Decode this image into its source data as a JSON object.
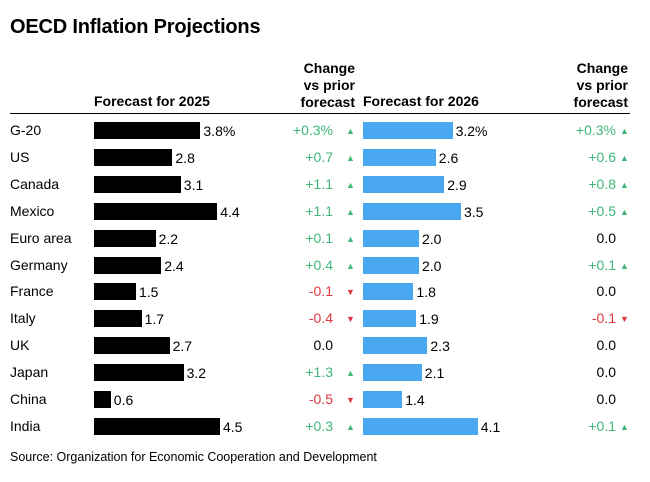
{
  "title": "OECD Inflation Projections",
  "headers": {
    "forecast_2025": "Forecast for 2025",
    "change_2025": [
      "Change",
      "vs prior",
      "forecast"
    ],
    "forecast_2026": "Forecast for 2026",
    "change_2026": [
      "Change",
      "vs prior",
      "forecast"
    ]
  },
  "source": "Source: Organization for Economic Cooperation and Development",
  "colors": {
    "bar_2025": "#000000",
    "bar_2026": "#4aa8f0",
    "up": "#3fb87a",
    "down": "#e0363f"
  },
  "chart_data": {
    "type": "bar",
    "categories": [
      "G-20",
      "US",
      "Canada",
      "Mexico",
      "Euro area",
      "Germany",
      "France",
      "Italy",
      "UK",
      "Japan",
      "China",
      "India"
    ],
    "series": [
      {
        "name": "Forecast for 2025",
        "values": [
          3.8,
          2.8,
          3.1,
          4.4,
          2.2,
          2.4,
          1.5,
          1.7,
          2.7,
          3.2,
          0.6,
          4.5
        ],
        "labels": [
          "3.8%",
          "2.8",
          "3.1",
          "4.4",
          "2.2",
          "2.4",
          "1.5",
          "1.7",
          "2.7",
          "3.2",
          "0.6",
          "4.5"
        ],
        "change": [
          "+0.3%",
          "+0.7",
          "+1.1",
          "+1.1",
          "+0.1",
          "+0.4",
          "-0.1",
          "-0.4",
          "0.0",
          "+1.3",
          "-0.5",
          "+0.3"
        ]
      },
      {
        "name": "Forecast for 2026",
        "values": [
          3.2,
          2.6,
          2.9,
          3.5,
          2.0,
          2.0,
          1.8,
          1.9,
          2.3,
          2.1,
          1.4,
          4.1
        ],
        "labels": [
          "3.2%",
          "2.6",
          "2.9",
          "3.5",
          "2.0",
          "2.0",
          "1.8",
          "1.9",
          "2.3",
          "2.1",
          "1.4",
          "4.1"
        ],
        "change": [
          "+0.3%",
          "+0.6",
          "+0.8",
          "+0.5",
          "0.0",
          "+0.1",
          "0.0",
          "-0.1",
          "0.0",
          "0.0",
          "0.0",
          "+0.1"
        ]
      }
    ],
    "xlim": [
      0,
      5
    ]
  }
}
